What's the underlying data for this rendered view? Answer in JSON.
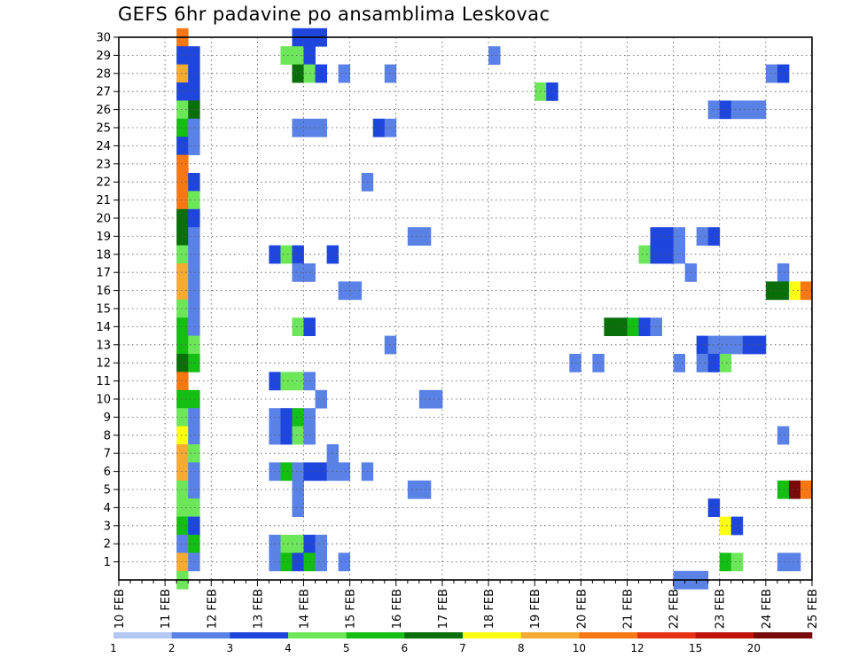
{
  "chart_data": {
    "type": "heatmap",
    "title": "GEFS 6hr padavine po ansamblima Leskovac",
    "x_tick_labels": [
      "10 FEB",
      "11 FEB",
      "12 FEB",
      "13 FEB",
      "14 FEB",
      "15 FEB",
      "16 FEB",
      "17 FEB",
      "18 FEB",
      "19 FEB",
      "20 FEB",
      "21 FEB",
      "22 FEB",
      "23 FEB",
      "24 FEB",
      "25 FEB"
    ],
    "y_tick_labels": [
      "1",
      "2",
      "3",
      "4",
      "5",
      "6",
      "7",
      "8",
      "9",
      "10",
      "11",
      "12",
      "13",
      "14",
      "15",
      "16",
      "17",
      "18",
      "19",
      "20",
      "21",
      "22",
      "23",
      "24",
      "25",
      "26",
      "27",
      "28",
      "29",
      "30"
    ],
    "xlim": [
      0,
      60
    ],
    "ylim": [
      0,
      30
    ],
    "x_step": "6 hr (4 columns per day)",
    "grid": true,
    "colorbar": {
      "labels": [
        "1",
        "2",
        "3",
        "4",
        "5",
        "6",
        "7",
        "8",
        "10",
        "12",
        "15",
        "20"
      ],
      "colors": [
        "#b4c8f5",
        "#5a82e6",
        "#1e46dc",
        "#6ee65a",
        "#14be14",
        "#0a6e0a",
        "#ffff14",
        "#f5aa32",
        "#f57814",
        "#e63214",
        "#be140a",
        "#780a0a"
      ]
    },
    "cells": [
      [
        5,
        30,
        8
      ],
      [
        5,
        29,
        2
      ],
      [
        5,
        28,
        7
      ],
      [
        5,
        27,
        2
      ],
      [
        5,
        26,
        3
      ],
      [
        5,
        25,
        4
      ],
      [
        5,
        24,
        2
      ],
      [
        5,
        23,
        8
      ],
      [
        5,
        22,
        8
      ],
      [
        5,
        21,
        8
      ],
      [
        5,
        20,
        5
      ],
      [
        5,
        19,
        5
      ],
      [
        5,
        18,
        3
      ],
      [
        5,
        17,
        7
      ],
      [
        5,
        16,
        7
      ],
      [
        5,
        15,
        3
      ],
      [
        5,
        14,
        4
      ],
      [
        5,
        13,
        4
      ],
      [
        5,
        12,
        5
      ],
      [
        5,
        11,
        8
      ],
      [
        5,
        10,
        4
      ],
      [
        5,
        9,
        3
      ],
      [
        5,
        8,
        6
      ],
      [
        5,
        7,
        7
      ],
      [
        5,
        6,
        7
      ],
      [
        5,
        5,
        3
      ],
      [
        5,
        4,
        3
      ],
      [
        5,
        3,
        4
      ],
      [
        5,
        2,
        1
      ],
      [
        5,
        1,
        7
      ],
      [
        5,
        0,
        3
      ],
      [
        6,
        29,
        2
      ],
      [
        6,
        28,
        2
      ],
      [
        6,
        27,
        2
      ],
      [
        6,
        26,
        5
      ],
      [
        6,
        25,
        1
      ],
      [
        6,
        24,
        1
      ],
      [
        6,
        22,
        2
      ],
      [
        6,
        21,
        3
      ],
      [
        6,
        20,
        2
      ],
      [
        6,
        19,
        1
      ],
      [
        6,
        18,
        1
      ],
      [
        6,
        17,
        1
      ],
      [
        6,
        16,
        1
      ],
      [
        6,
        15,
        1
      ],
      [
        6,
        14,
        1
      ],
      [
        6,
        13,
        3
      ],
      [
        6,
        12,
        4
      ],
      [
        6,
        10,
        4
      ],
      [
        6,
        9,
        1
      ],
      [
        6,
        8,
        1
      ],
      [
        6,
        7,
        3
      ],
      [
        6,
        6,
        1
      ],
      [
        6,
        5,
        1
      ],
      [
        6,
        4,
        3
      ],
      [
        6,
        3,
        2
      ],
      [
        6,
        2,
        4
      ],
      [
        6,
        1,
        1
      ],
      [
        13,
        18,
        2
      ],
      [
        13,
        11,
        2
      ],
      [
        13,
        9,
        1
      ],
      [
        13,
        8,
        1
      ],
      [
        13,
        6,
        1
      ],
      [
        13,
        2,
        1
      ],
      [
        13,
        1,
        1
      ],
      [
        14,
        29,
        3
      ],
      [
        14,
        18,
        3
      ],
      [
        14,
        11,
        3
      ],
      [
        14,
        9,
        2
      ],
      [
        14,
        8,
        2
      ],
      [
        14,
        6,
        4
      ],
      [
        14,
        2,
        3
      ],
      [
        14,
        1,
        4
      ],
      [
        15,
        30,
        2
      ],
      [
        15,
        29,
        3
      ],
      [
        15,
        28,
        5
      ],
      [
        15,
        25,
        1
      ],
      [
        15,
        18,
        2
      ],
      [
        15,
        17,
        1
      ],
      [
        15,
        14,
        3
      ],
      [
        15,
        11,
        3
      ],
      [
        15,
        9,
        4
      ],
      [
        15,
        8,
        3
      ],
      [
        15,
        6,
        1
      ],
      [
        15,
        5,
        1
      ],
      [
        15,
        4,
        1
      ],
      [
        15,
        2,
        3
      ],
      [
        15,
        1,
        2
      ],
      [
        16,
        30,
        2
      ],
      [
        16,
        29,
        2
      ],
      [
        16,
        28,
        3
      ],
      [
        16,
        25,
        1
      ],
      [
        16,
        17,
        1
      ],
      [
        16,
        14,
        2
      ],
      [
        16,
        11,
        1
      ],
      [
        16,
        9,
        1
      ],
      [
        16,
        8,
        1
      ],
      [
        16,
        6,
        2
      ],
      [
        16,
        2,
        2
      ],
      [
        16,
        1,
        4
      ],
      [
        17,
        30,
        2
      ],
      [
        17,
        28,
        2
      ],
      [
        17,
        25,
        1
      ],
      [
        17,
        10,
        1
      ],
      [
        17,
        6,
        2
      ],
      [
        17,
        2,
        1
      ],
      [
        17,
        1,
        1
      ],
      [
        18,
        18,
        2
      ],
      [
        18,
        7,
        1
      ],
      [
        18,
        6,
        1
      ],
      [
        19,
        28,
        1
      ],
      [
        19,
        16,
        1
      ],
      [
        19,
        6,
        1
      ],
      [
        19,
        1,
        1
      ],
      [
        20,
        16,
        1
      ],
      [
        21,
        22,
        1
      ],
      [
        21,
        6,
        1
      ],
      [
        22,
        25,
        2
      ],
      [
        23,
        28,
        1
      ],
      [
        23,
        25,
        1
      ],
      [
        23,
        13,
        1
      ],
      [
        25,
        19,
        1
      ],
      [
        25,
        5,
        1
      ],
      [
        26,
        19,
        1
      ],
      [
        26,
        10,
        1
      ],
      [
        26,
        5,
        1
      ],
      [
        27,
        10,
        1
      ],
      [
        32,
        29,
        1
      ],
      [
        36,
        27,
        3
      ],
      [
        37,
        27,
        2
      ],
      [
        39,
        12,
        1
      ],
      [
        41,
        12,
        1
      ],
      [
        42,
        14,
        5
      ],
      [
        43,
        14,
        5
      ],
      [
        44,
        14,
        4
      ],
      [
        45,
        18,
        3
      ],
      [
        45,
        14,
        2
      ],
      [
        46,
        19,
        2
      ],
      [
        46,
        18,
        2
      ],
      [
        46,
        14,
        1
      ],
      [
        47,
        19,
        2
      ],
      [
        47,
        18,
        2
      ],
      [
        48,
        19,
        1
      ],
      [
        48,
        18,
        1
      ],
      [
        48,
        12,
        1
      ],
      [
        48,
        0,
        1
      ],
      [
        49,
        17,
        1
      ],
      [
        49,
        0,
        1
      ],
      [
        50,
        19,
        1
      ],
      [
        50,
        13,
        2
      ],
      [
        50,
        12,
        1
      ],
      [
        50,
        0,
        1
      ],
      [
        51,
        26,
        1
      ],
      [
        51,
        19,
        2
      ],
      [
        51,
        13,
        1
      ],
      [
        51,
        12,
        2
      ],
      [
        51,
        4,
        2
      ],
      [
        52,
        26,
        2
      ],
      [
        52,
        13,
        1
      ],
      [
        52,
        12,
        3
      ],
      [
        52,
        3,
        6
      ],
      [
        52,
        1,
        4
      ],
      [
        53,
        26,
        1
      ],
      [
        53,
        13,
        1
      ],
      [
        53,
        3,
        2
      ],
      [
        53,
        1,
        3
      ],
      [
        54,
        26,
        1
      ],
      [
        54,
        13,
        2
      ],
      [
        55,
        26,
        1
      ],
      [
        55,
        13,
        2
      ],
      [
        56,
        28,
        1
      ],
      [
        56,
        16,
        5
      ],
      [
        57,
        28,
        2
      ],
      [
        57,
        17,
        1
      ],
      [
        57,
        16,
        5
      ],
      [
        57,
        8,
        1
      ],
      [
        57,
        5,
        4
      ],
      [
        57,
        1,
        1
      ],
      [
        58,
        16,
        6
      ],
      [
        58,
        5,
        11
      ],
      [
        58,
        1,
        1
      ],
      [
        59,
        16,
        8
      ],
      [
        59,
        5,
        8
      ]
    ]
  }
}
